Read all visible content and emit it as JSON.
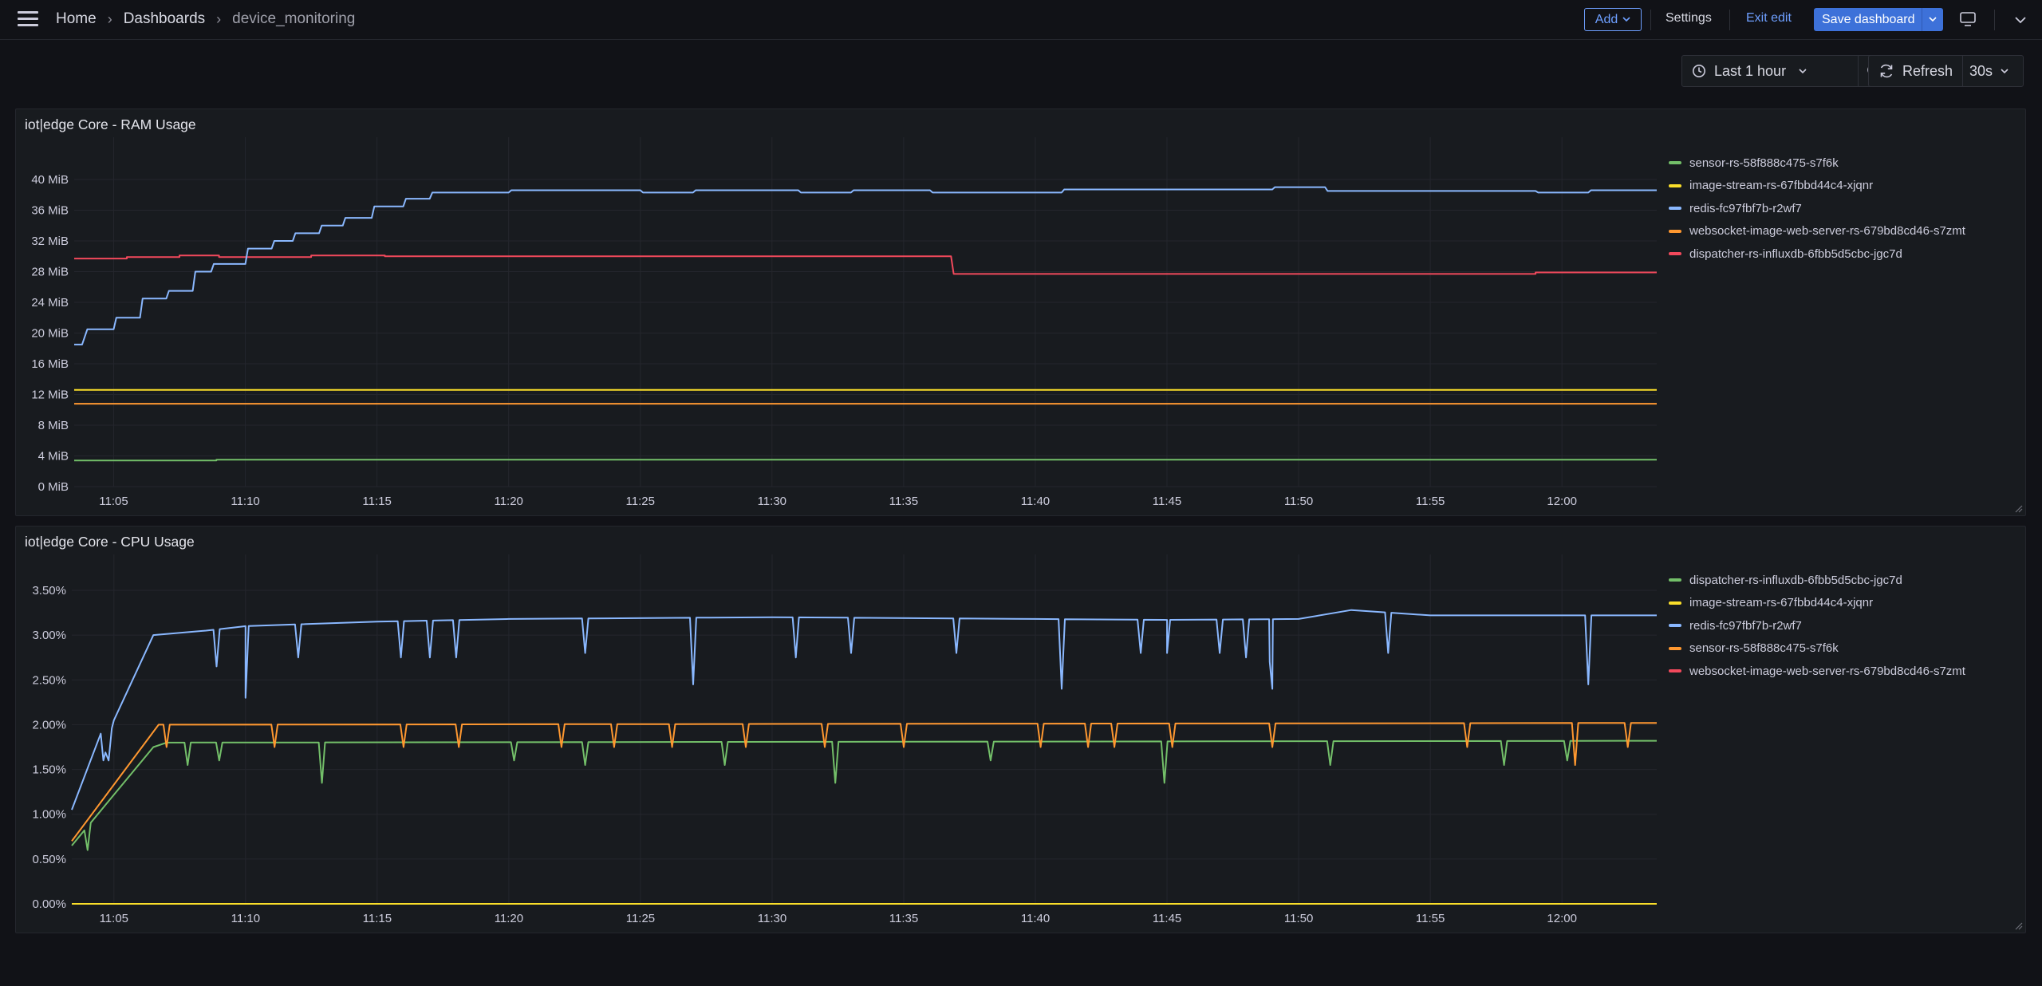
{
  "breadcrumb": {
    "home": "Home",
    "dashboards": "Dashboards",
    "current": "device_monitoring"
  },
  "toolbar": {
    "add": "Add",
    "settings": "Settings",
    "exit_edit": "Exit edit",
    "save": "Save dashboard"
  },
  "time": {
    "range": "Last 1 hour",
    "refresh": "Refresh",
    "interval": "30s"
  },
  "icons": [
    "menu-icon",
    "chevron-right-icon",
    "chevron-down-icon",
    "clock-icon",
    "zoom-out-icon",
    "refresh-icon",
    "tv-icon",
    "resize-handle-icon"
  ],
  "colors": {
    "green": "#73bf69",
    "yellow": "#fade2a",
    "blue": "#8ab8ff",
    "orange": "#ff9830",
    "red": "#f2495c",
    "accent": "#6e9fff",
    "save_bg": "#3d71d9"
  },
  "panels": [
    {
      "title": "iot|edge Core - RAM Usage",
      "legend": [
        {
          "name": "sensor-rs-58f888c475-s7f6k",
          "color": "#73bf69"
        },
        {
          "name": "image-stream-rs-67fbbd44c4-xjqnr",
          "color": "#fade2a"
        },
        {
          "name": "redis-fc97fbf7b-r2wf7",
          "color": "#8ab8ff"
        },
        {
          "name": "websocket-image-web-server-rs-679bd8cd46-s7zmt",
          "color": "#ff9830"
        },
        {
          "name": "dispatcher-rs-influxdb-6fbb5d5cbc-jgc7d",
          "color": "#f2495c"
        }
      ]
    },
    {
      "title": "iot|edge Core - CPU Usage",
      "legend": [
        {
          "name": "dispatcher-rs-influxdb-6fbb5d5cbc-jgc7d",
          "color": "#73bf69"
        },
        {
          "name": "image-stream-rs-67fbbd44c4-xjqnr",
          "color": "#fade2a"
        },
        {
          "name": "redis-fc97fbf7b-r2wf7",
          "color": "#8ab8ff"
        },
        {
          "name": "sensor-rs-58f888c475-s7f6k",
          "color": "#ff9830"
        },
        {
          "name": "websocket-image-web-server-rs-679bd8cd46-s7zmt",
          "color": "#f2495c"
        }
      ]
    }
  ],
  "chart_data": [
    {
      "type": "line",
      "title": "iot|edge Core - RAM Usage",
      "x_ticks": [
        "11:05",
        "11:10",
        "11:15",
        "11:20",
        "11:25",
        "11:30",
        "11:35",
        "11:40",
        "11:45",
        "11:50",
        "11:55",
        "12:00"
      ],
      "y_ticks": [
        "0 MiB",
        "4 MiB",
        "8 MiB",
        "12 MiB",
        "16 MiB",
        "20 MiB",
        "24 MiB",
        "28 MiB",
        "32 MiB",
        "36 MiB",
        "40 MiB"
      ],
      "ylim": [
        0,
        42
      ],
      "x_range_minutes": [
        -1.5,
        58.6
      ],
      "series": [
        {
          "name": "sensor-rs-58f888c475-s7f6k",
          "color": "#73bf69",
          "points": [
            [
              -1.5,
              3.4
            ],
            [
              3.9,
              3.4
            ],
            [
              3.9,
              3.5
            ],
            [
              58.6,
              3.5
            ]
          ]
        },
        {
          "name": "image-stream-rs-67fbbd44c4-xjqnr",
          "color": "#fade2a",
          "points": [
            [
              -1.5,
              12.6
            ],
            [
              58.6,
              12.6
            ]
          ]
        },
        {
          "name": "websocket-image-web-server-rs-679bd8cd46-s7zmt",
          "color": "#ff9830",
          "points": [
            [
              -1.5,
              10.8
            ],
            [
              58.6,
              10.8
            ]
          ]
        },
        {
          "name": "dispatcher-rs-influxdb-6fbb5d5cbc-jgc7d",
          "color": "#f2495c",
          "points": [
            [
              -1.5,
              29.7
            ],
            [
              0.5,
              29.7
            ],
            [
              0.5,
              29.9
            ],
            [
              2.5,
              29.9
            ],
            [
              2.5,
              30.1
            ],
            [
              4.0,
              30.1
            ],
            [
              4.0,
              29.9
            ],
            [
              7.5,
              29.9
            ],
            [
              7.5,
              30.1
            ],
            [
              10.3,
              30.1
            ],
            [
              10.3,
              30.0
            ],
            [
              31.8,
              30.0
            ],
            [
              31.9,
              27.7
            ],
            [
              54.0,
              27.7
            ],
            [
              54.0,
              27.9
            ],
            [
              58.6,
              27.9
            ]
          ]
        },
        {
          "name": "redis-fc97fbf7b-r2wf7",
          "color": "#8ab8ff",
          "points": [
            [
              -1.5,
              18.5
            ],
            [
              -1.2,
              18.5
            ],
            [
              -1.0,
              20.5
            ],
            [
              0.0,
              20.5
            ],
            [
              0.1,
              22.0
            ],
            [
              1.0,
              22.0
            ],
            [
              1.1,
              24.5
            ],
            [
              2.0,
              24.5
            ],
            [
              2.1,
              25.5
            ],
            [
              3.0,
              25.5
            ],
            [
              3.1,
              28.0
            ],
            [
              3.7,
              28.0
            ],
            [
              3.8,
              29.0
            ],
            [
              5.0,
              29.0
            ],
            [
              5.1,
              31.0
            ],
            [
              6.0,
              31.0
            ],
            [
              6.1,
              32.0
            ],
            [
              6.8,
              32.0
            ],
            [
              6.9,
              33.0
            ],
            [
              7.8,
              33.0
            ],
            [
              7.9,
              34.0
            ],
            [
              8.7,
              34.0
            ],
            [
              8.8,
              35.0
            ],
            [
              9.8,
              35.0
            ],
            [
              9.9,
              36.5
            ],
            [
              11.0,
              36.5
            ],
            [
              11.1,
              37.5
            ],
            [
              12.0,
              37.5
            ],
            [
              12.1,
              38.3
            ],
            [
              15.0,
              38.3
            ],
            [
              15.1,
              38.6
            ],
            [
              20.0,
              38.6
            ],
            [
              20.1,
              38.3
            ],
            [
              22.0,
              38.3
            ],
            [
              22.1,
              38.6
            ],
            [
              26.0,
              38.6
            ],
            [
              26.1,
              38.3
            ],
            [
              28.0,
              38.3
            ],
            [
              28.1,
              38.6
            ],
            [
              31.0,
              38.6
            ],
            [
              31.1,
              38.3
            ],
            [
              36.0,
              38.3
            ],
            [
              36.1,
              38.7
            ],
            [
              44.0,
              38.7
            ],
            [
              44.1,
              39.0
            ],
            [
              46.0,
              39.0
            ],
            [
              46.1,
              38.5
            ],
            [
              54.0,
              38.5
            ],
            [
              54.1,
              38.3
            ],
            [
              56.0,
              38.3
            ],
            [
              56.1,
              38.6
            ],
            [
              58.6,
              38.6
            ]
          ]
        }
      ]
    },
    {
      "type": "line",
      "title": "iot|edge Core - CPU Usage",
      "x_ticks": [
        "11:05",
        "11:10",
        "11:15",
        "11:20",
        "11:25",
        "11:30",
        "11:35",
        "11:40",
        "11:45",
        "11:50",
        "11:55",
        "12:00"
      ],
      "y_ticks": [
        "0.00%",
        "0.50%",
        "1.00%",
        "1.50%",
        "2.00%",
        "2.50%",
        "3.00%",
        "3.50%"
      ],
      "ylim": [
        0,
        3.7
      ],
      "x_range_minutes": [
        -1.6,
        58.6
      ],
      "series": [
        {
          "name": "websocket-image-web-server-rs-679bd8cd46-s7zmt",
          "color": "#f2495c",
          "points": [
            [
              -1.6,
              0.0
            ],
            [
              58.6,
              0.0
            ]
          ]
        },
        {
          "name": "image-stream-rs-67fbbd44c4-xjqnr",
          "color": "#fade2a",
          "points": [
            [
              -1.6,
              0.0
            ],
            [
              58.6,
              0.0
            ]
          ]
        },
        {
          "name": "dispatcher-rs-influxdb-6fbb5d5cbc-jgc7d",
          "color": "#73bf69",
          "base": [
            [
              -1.6,
              0.65
            ],
            [
              1.5,
              1.75
            ],
            [
              2.0,
              1.8
            ],
            [
              58.6,
              1.82
            ]
          ],
          "dips": [
            [
              -1.0,
              0.6
            ],
            [
              2.8,
              1.55
            ],
            [
              4.0,
              1.6
            ],
            [
              7.9,
              1.35
            ],
            [
              15.2,
              1.6
            ],
            [
              17.9,
              1.55
            ],
            [
              23.2,
              1.55
            ],
            [
              27.4,
              1.35
            ],
            [
              33.3,
              1.6
            ],
            [
              39.9,
              1.35
            ],
            [
              46.2,
              1.55
            ],
            [
              52.8,
              1.55
            ],
            [
              55.2,
              1.6
            ]
          ]
        },
        {
          "name": "sensor-rs-58f888c475-s7f6k",
          "color": "#ff9830",
          "base": [
            [
              -1.6,
              0.7
            ],
            [
              1.7,
              2.0
            ],
            [
              58.6,
              2.02
            ]
          ],
          "dips": [
            [
              2.0,
              1.75
            ],
            [
              6.1,
              1.75
            ],
            [
              11.0,
              1.75
            ],
            [
              13.1,
              1.75
            ],
            [
              17.0,
              1.75
            ],
            [
              19.0,
              1.75
            ],
            [
              21.2,
              1.75
            ],
            [
              24.0,
              1.75
            ],
            [
              27.0,
              1.75
            ],
            [
              30.0,
              1.75
            ],
            [
              35.2,
              1.75
            ],
            [
              37.0,
              1.75
            ],
            [
              38.0,
              1.75
            ],
            [
              40.2,
              1.75
            ],
            [
              44.0,
              1.75
            ],
            [
              51.4,
              1.75
            ],
            [
              55.5,
              1.55
            ],
            [
              57.5,
              1.75
            ]
          ]
        },
        {
          "name": "redis-fc97fbf7b-r2wf7",
          "color": "#8ab8ff",
          "base": [
            [
              -1.6,
              1.05
            ],
            [
              -0.5,
              1.9
            ],
            [
              -0.4,
              1.6
            ],
            [
              0.0,
              2.05
            ],
            [
              1.5,
              3.0
            ],
            [
              3.5,
              3.05
            ],
            [
              5.0,
              3.1
            ],
            [
              10.0,
              3.15
            ],
            [
              15.0,
              3.18
            ],
            [
              25.0,
              3.2
            ],
            [
              35.0,
              3.18
            ],
            [
              40.0,
              3.17
            ],
            [
              45.0,
              3.18
            ],
            [
              47.0,
              3.28
            ],
            [
              50.0,
              3.22
            ],
            [
              58.6,
              3.22
            ]
          ],
          "dips": [
            [
              -0.2,
              1.6
            ],
            [
              3.9,
              2.65
            ],
            [
              5.0,
              2.3
            ],
            [
              7.0,
              2.75
            ],
            [
              10.9,
              2.75
            ],
            [
              12.0,
              2.75
            ],
            [
              13.0,
              2.75
            ],
            [
              17.9,
              2.8
            ],
            [
              22.0,
              2.45
            ],
            [
              25.9,
              2.75
            ],
            [
              28.0,
              2.8
            ],
            [
              32.0,
              2.8
            ],
            [
              36.0,
              2.4
            ],
            [
              39.0,
              2.8
            ],
            [
              40.0,
              2.8
            ],
            [
              42.0,
              2.8
            ],
            [
              43.0,
              2.75
            ],
            [
              43.9,
              2.7
            ],
            [
              44.0,
              2.4
            ],
            [
              48.4,
              2.8
            ],
            [
              56.0,
              2.45
            ]
          ]
        }
      ]
    }
  ]
}
